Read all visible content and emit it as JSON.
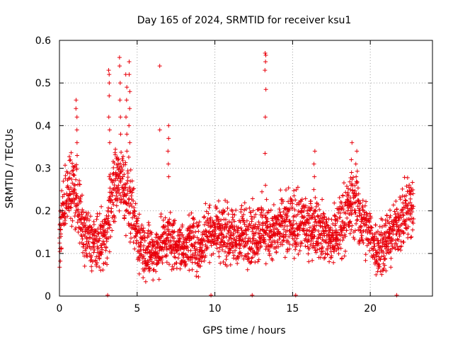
{
  "chart_data": {
    "type": "scatter",
    "title": "Day 165 of 2024, SRMTID for receiver ksu1",
    "xlabel": "GPS time / hours",
    "ylabel": "SRMTID / TECUs",
    "xlim": [
      0,
      24
    ],
    "ylim": [
      0,
      0.6
    ],
    "x_ticks": [
      0,
      5,
      10,
      15,
      20
    ],
    "x_tick_labels": [
      "0",
      "5",
      "10",
      "15",
      "20"
    ],
    "y_ticks": [
      0,
      0.1,
      0.2,
      0.3,
      0.4,
      0.5,
      0.6
    ],
    "y_tick_labels": [
      "0",
      "0.1",
      "0.2",
      "0.3",
      "0.4",
      "0.5",
      "0.6"
    ],
    "grid": true,
    "series": [
      {
        "name": "SRMTID",
        "marker": "plus",
        "color": "#e8000b",
        "trend": {
          "x": [
            0,
            0.2,
            0.5,
            0.9,
            1.2,
            1.5,
            2.0,
            2.5,
            3.0,
            3.2,
            3.5,
            4.0,
            4.5,
            5.0,
            5.5,
            6.0,
            6.5,
            7.0,
            7.5,
            8.0,
            8.5,
            9.0,
            9.5,
            10.0,
            10.5,
            11.0,
            11.5,
            12.0,
            12.5,
            13.0,
            13.5,
            14.0,
            14.5,
            15.0,
            15.5,
            16.0,
            16.5,
            17.0,
            17.5,
            18.0,
            18.5,
            19.0,
            19.5,
            20.0,
            20.5,
            21.0,
            21.5,
            22.0,
            22.5,
            22.8
          ],
          "y": [
            0.14,
            0.2,
            0.24,
            0.25,
            0.22,
            0.15,
            0.13,
            0.12,
            0.14,
            0.2,
            0.26,
            0.28,
            0.22,
            0.14,
            0.11,
            0.1,
            0.12,
            0.14,
            0.12,
            0.11,
            0.13,
            0.11,
            0.15,
            0.16,
            0.15,
            0.14,
            0.13,
            0.15,
            0.14,
            0.16,
            0.15,
            0.15,
            0.16,
            0.17,
            0.17,
            0.16,
            0.17,
            0.15,
            0.13,
            0.16,
            0.2,
            0.22,
            0.17,
            0.14,
            0.11,
            0.13,
            0.15,
            0.18,
            0.21,
            0.2
          ]
        },
        "spikes": [
          {
            "x": 1.1,
            "y": [
              0.3,
              0.33,
              0.36,
              0.39,
              0.42,
              0.44,
              0.46
            ]
          },
          {
            "x": 3.2,
            "y": [
              0.36,
              0.39,
              0.42,
              0.47,
              0.5,
              0.52,
              0.53
            ]
          },
          {
            "x": 3.9,
            "y": [
              0.38,
              0.42,
              0.46,
              0.5,
              0.54,
              0.56
            ]
          },
          {
            "x": 4.3,
            "y": [
              0.34,
              0.38,
              0.42,
              0.46,
              0.49,
              0.52
            ]
          },
          {
            "x": 4.5,
            "y": [
              0.36,
              0.4,
              0.44,
              0.48,
              0.52,
              0.55
            ]
          },
          {
            "x": 6.45,
            "y": [
              0.39,
              0.54
            ]
          },
          {
            "x": 7.0,
            "y": [
              0.28,
              0.31,
              0.34,
              0.37,
              0.4
            ]
          },
          {
            "x": 13.25,
            "y": [
              0.26,
              0.335,
              0.42,
              0.485,
              0.53,
              0.55,
              0.565,
              0.57
            ]
          },
          {
            "x": 16.4,
            "y": [
              0.25,
              0.28,
              0.31,
              0.34
            ]
          },
          {
            "x": 18.8,
            "y": [
              0.26,
              0.29,
              0.32,
              0.36
            ]
          },
          {
            "x": 19.1,
            "y": [
              0.28,
              0.31,
              0.34
            ]
          }
        ],
        "zero_points": [
          3.1,
          9.75,
          12.4,
          15.2,
          21.7
        ]
      }
    ]
  }
}
